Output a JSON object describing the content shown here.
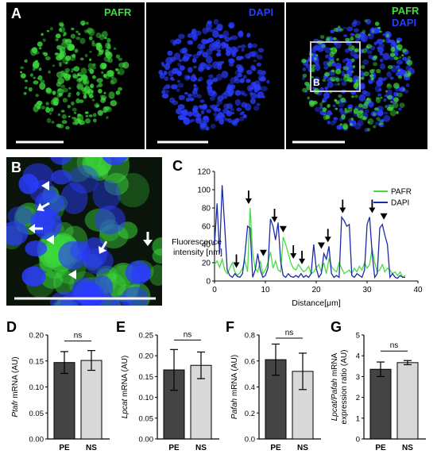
{
  "panels": {
    "A": {
      "letter": "A",
      "images": [
        {
          "channels": [
            "PAFR"
          ],
          "colors": [
            "#3ddc3d"
          ]
        },
        {
          "channels": [
            "DAPI"
          ],
          "colors": [
            "#2a3cff"
          ]
        },
        {
          "channels": [
            "PAFR",
            "DAPI"
          ],
          "colors": [
            "#3ddc3d",
            "#2a3cff"
          ],
          "inset_label": "B"
        }
      ]
    },
    "B": {
      "letter": "B"
    },
    "C": {
      "letter": "C"
    },
    "D": {
      "letter": "D"
    },
    "E": {
      "letter": "E"
    },
    "F": {
      "letter": "F"
    },
    "G": {
      "letter": "G"
    }
  },
  "chart_data": [
    {
      "id": "C",
      "type": "line",
      "xlabel": "Distance[μm]",
      "ylabel_lines": [
        "Fluorescence",
        "intensity [nm]"
      ],
      "xlim": [
        0,
        40
      ],
      "ylim": [
        0,
        120
      ],
      "xticks": [
        "0",
        "10",
        "20",
        "30",
        "40"
      ],
      "yticks": [
        "0",
        "20",
        "40",
        "60",
        "80",
        "100",
        "120"
      ],
      "grid": false,
      "legend": "top-right",
      "series": [
        {
          "name": "PAFR",
          "color": "#44dd44",
          "x": [
            0,
            0.5,
            1,
            1.5,
            2,
            2.5,
            3,
            3.5,
            4,
            4.5,
            5,
            5.5,
            6,
            6.5,
            7,
            7.5,
            8,
            8.5,
            9,
            9.5,
            10,
            10.5,
            11,
            11.5,
            12,
            12.5,
            13,
            13.5,
            14,
            14.5,
            15,
            15.5,
            16,
            16.5,
            17,
            17.5,
            18,
            18.5,
            19,
            19.5,
            20,
            20.5,
            21,
            21.5,
            22,
            22.5,
            23,
            23.5,
            24,
            24.5,
            25,
            25.5,
            26,
            26.5,
            27,
            27.5,
            28,
            28.5,
            29,
            29.5,
            30,
            30.5,
            31,
            31.5,
            32,
            32.5,
            33,
            33.5,
            34,
            34.5,
            35,
            35.5,
            36,
            36.5,
            37,
            37.5
          ],
          "y": [
            18,
            22,
            15,
            24,
            12,
            8,
            14,
            20,
            10,
            6,
            9,
            14,
            22,
            10,
            80,
            30,
            14,
            10,
            22,
            8,
            12,
            20,
            32,
            14,
            22,
            12,
            10,
            48,
            40,
            30,
            20,
            14,
            12,
            18,
            14,
            10,
            12,
            16,
            8,
            10,
            14,
            18,
            10,
            20,
            8,
            24,
            16,
            12,
            10,
            20,
            14,
            8,
            10,
            12,
            8,
            14,
            10,
            16,
            12,
            20,
            14,
            18,
            36,
            20,
            10,
            12,
            18,
            10,
            14,
            12,
            8,
            10,
            6,
            10,
            4,
            6
          ]
        },
        {
          "name": "DAPI",
          "color": "#1a2aa8",
          "x": [
            0,
            0.5,
            1,
            1.5,
            2,
            2.5,
            3,
            3.5,
            4,
            4.5,
            5,
            5.5,
            6,
            6.5,
            7,
            7.5,
            8,
            8.5,
            9,
            9.5,
            10,
            10.5,
            11,
            11.5,
            12,
            12.5,
            13,
            13.5,
            14,
            14.5,
            15,
            15.5,
            16,
            16.5,
            17,
            17.5,
            18,
            18.5,
            19,
            19.5,
            20,
            20.5,
            21,
            21.5,
            22,
            22.5,
            23,
            23.5,
            24,
            24.5,
            25,
            25.5,
            26,
            26.5,
            27,
            27.5,
            28,
            28.5,
            29,
            29.5,
            30,
            30.5,
            31,
            31.5,
            32,
            32.5,
            33,
            33.5,
            34,
            34.5,
            35,
            35.5,
            36,
            36.5,
            37,
            37.5
          ],
          "y": [
            40,
            85,
            30,
            105,
            60,
            12,
            6,
            4,
            8,
            5,
            4,
            8,
            30,
            60,
            58,
            4,
            12,
            30,
            12,
            4,
            6,
            14,
            68,
            60,
            45,
            64,
            22,
            6,
            4,
            8,
            5,
            4,
            6,
            4,
            8,
            4,
            6,
            4,
            8,
            40,
            14,
            4,
            8,
            30,
            24,
            38,
            8,
            4,
            6,
            4,
            70,
            66,
            60,
            62,
            6,
            4,
            8,
            6,
            4,
            12,
            62,
            70,
            30,
            4,
            8,
            58,
            62,
            50,
            40,
            4,
            8,
            4,
            3,
            6,
            4,
            4
          ]
        }
      ],
      "annotations": {
        "arrows_at_x": [
          4.3,
          6.7,
          11.8,
          15.5,
          17.2,
          22.3,
          25.2,
          31
        ],
        "triangles_at_x": [
          9.6,
          13.5,
          21,
          33.3
        ]
      }
    },
    {
      "id": "D",
      "type": "bar",
      "categories": [
        "PE",
        "NS"
      ],
      "values": [
        0.147,
        0.151
      ],
      "errors": [
        0.021,
        0.019
      ],
      "colors": [
        "#444444",
        "#d8d8d8"
      ],
      "ylabel_italic": "Ptafr",
      "ylabel_rest": " mRNA (AU)",
      "ylim": [
        0,
        0.2
      ],
      "yticks": [
        "0.00",
        "0.05",
        "0.10",
        "0.15",
        "0.20"
      ],
      "sig": "ns"
    },
    {
      "id": "E",
      "type": "bar",
      "categories": [
        "PE",
        "NS"
      ],
      "values": [
        0.166,
        0.177
      ],
      "errors": [
        0.049,
        0.032
      ],
      "colors": [
        "#444444",
        "#d8d8d8"
      ],
      "ylabel_italic": "Lpcat",
      "ylabel_rest": " mRNA (AU)",
      "ylim": [
        0,
        0.25
      ],
      "yticks": [
        "0.00",
        "0.05",
        "0.10",
        "0.15",
        "0.20",
        "0.25"
      ],
      "sig": "ns"
    },
    {
      "id": "F",
      "type": "bar",
      "categories": [
        "PE",
        "NS"
      ],
      "values": [
        0.61,
        0.52
      ],
      "errors": [
        0.12,
        0.14
      ],
      "colors": [
        "#444444",
        "#d8d8d8"
      ],
      "ylabel_italic": "Pafah",
      "ylabel_rest": " mRNA (AU)",
      "ylim": [
        0,
        0.8
      ],
      "yticks": [
        "0.0",
        "0.2",
        "0.4",
        "0.6",
        "0.8"
      ],
      "sig": "ns"
    },
    {
      "id": "G",
      "type": "bar",
      "categories": [
        "PE",
        "NS"
      ],
      "values": [
        3.35,
        3.67
      ],
      "errors": [
        0.35,
        0.1
      ],
      "colors": [
        "#444444",
        "#d8d8d8"
      ],
      "ylabel_italic": "Lpcat/Pafah",
      "ylabel_rest": " mRNA",
      "ylabel_line2": "expression ratio (AU)",
      "ylim": [
        0,
        5
      ],
      "yticks": [
        "0",
        "1",
        "2",
        "3",
        "4",
        "5"
      ],
      "sig": "ns"
    }
  ]
}
